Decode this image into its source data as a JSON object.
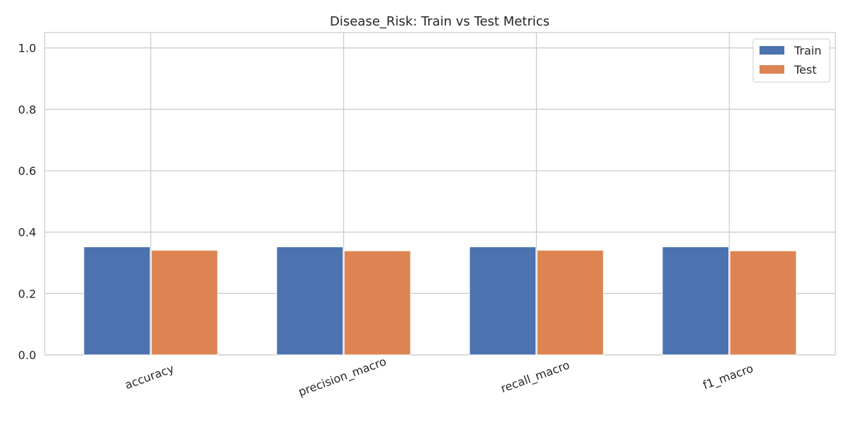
{
  "chart_data": {
    "type": "bar",
    "title": "Disease_Risk: Train vs Test Metrics",
    "xlabel": "",
    "ylabel": "",
    "categories": [
      "accuracy",
      "precision_macro",
      "recall_macro",
      "f1_macro"
    ],
    "series": [
      {
        "name": "Train",
        "values": [
          0.352,
          0.352,
          0.352,
          0.352
        ],
        "color": "#4c72b0"
      },
      {
        "name": "Test",
        "values": [
          0.341,
          0.339,
          0.341,
          0.339
        ],
        "color": "#dd8452"
      }
    ],
    "ylim": [
      0,
      1.05
    ],
    "yticks": [
      "0.0",
      "0.2",
      "0.4",
      "0.6",
      "0.8",
      "1.0"
    ],
    "grid": true,
    "legend_position": "top-right"
  }
}
